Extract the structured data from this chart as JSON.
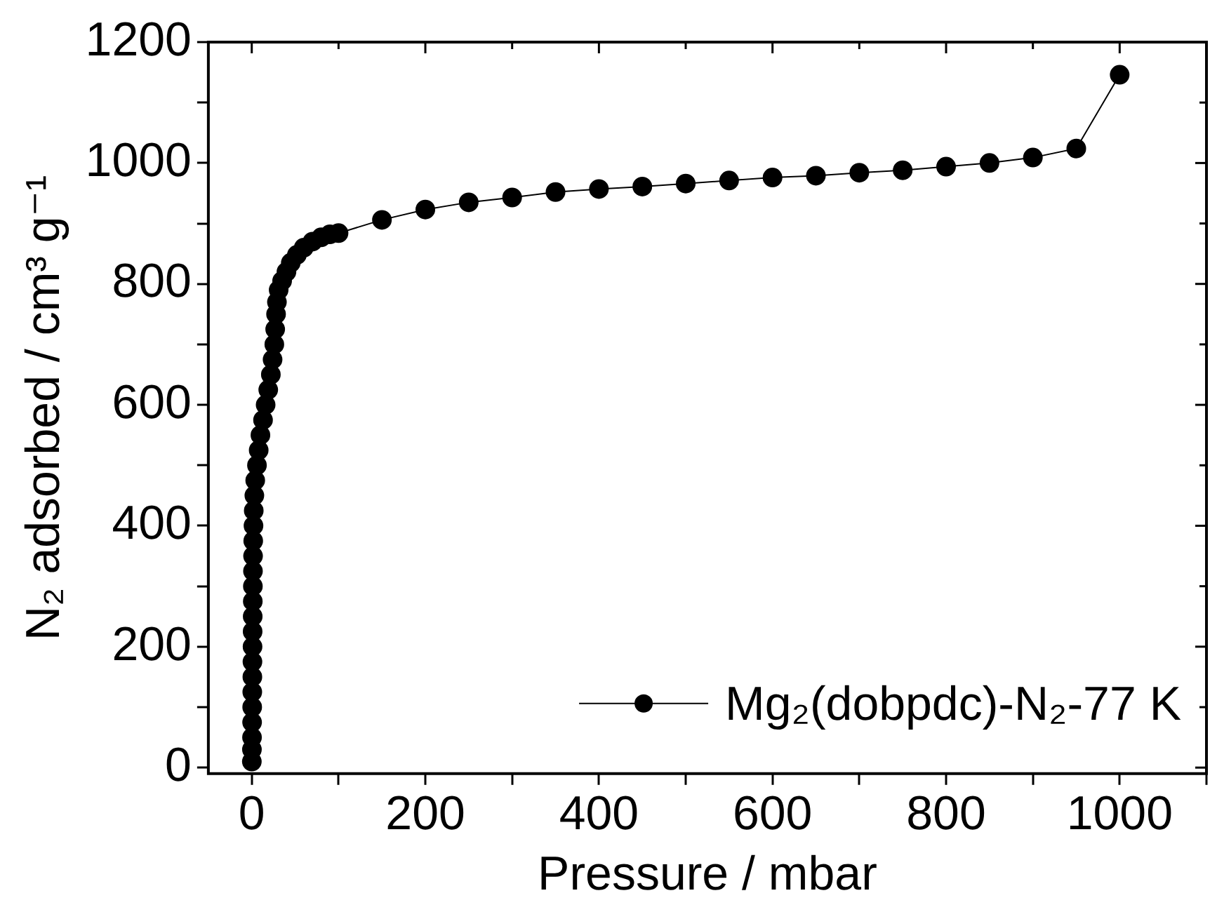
{
  "chart_data": {
    "type": "line",
    "xlabel": "Pressure / mbar",
    "ylabel": "N₂ adsorbed / cm³ g⁻¹",
    "xlim": [
      -50,
      1100
    ],
    "xticks": [
      0,
      {
        "value": 100,
        "label": null
      },
      200,
      {
        "value": 300,
        "label": null
      },
      400,
      {
        "value": 500,
        "label": null
      },
      600,
      {
        "value": 700,
        "label": null
      },
      800,
      {
        "value": 900,
        "label": null
      },
      1000,
      {
        "value": 1100,
        "label": null
      }
    ],
    "ylim": [
      -10,
      1200
    ],
    "yticks": [
      0,
      {
        "value": 100,
        "label": null
      },
      200,
      {
        "value": 300,
        "label": null
      },
      400,
      {
        "value": 500,
        "label": null
      },
      600,
      {
        "value": 700,
        "label": null
      },
      800,
      {
        "value": 900,
        "label": null
      },
      1000,
      {
        "value": 1100,
        "label": null
      },
      1200
    ],
    "grid": false,
    "legend": "bottom right",
    "marker": "circle",
    "line_style": "solid",
    "series": [
      {
        "name": "Mg₂(dobpdc)-N₂-77 K",
        "color": "#000000",
        "x": [
          0.1,
          0.2,
          0.3,
          0.4,
          0.5,
          0.6,
          0.7,
          0.8,
          0.9,
          1,
          1.1,
          1.2,
          1.3,
          1.4,
          1.5,
          1.7,
          2,
          2.3,
          3,
          4,
          6,
          8,
          10,
          13,
          16,
          19,
          22,
          24,
          26,
          27,
          28,
          29,
          31,
          35,
          40,
          45,
          52,
          60,
          70,
          80,
          90,
          100,
          150,
          200,
          250,
          300,
          350,
          400,
          450,
          500,
          550,
          600,
          650,
          700,
          750,
          800,
          850,
          900,
          950,
          1000
        ],
        "values": [
          10,
          30,
          50,
          75,
          100,
          125,
          150,
          175,
          200,
          225,
          250,
          275,
          300,
          325,
          350,
          375,
          400,
          425,
          450,
          475,
          500,
          525,
          550,
          575,
          600,
          625,
          650,
          675,
          700,
          725,
          750,
          770,
          790,
          805,
          820,
          835,
          848,
          860,
          870,
          877,
          882,
          884,
          906,
          923,
          935,
          943,
          952,
          957,
          961,
          966,
          971,
          976,
          979,
          984,
          988,
          994,
          1000,
          1009,
          1024,
          1146
        ]
      }
    ]
  }
}
